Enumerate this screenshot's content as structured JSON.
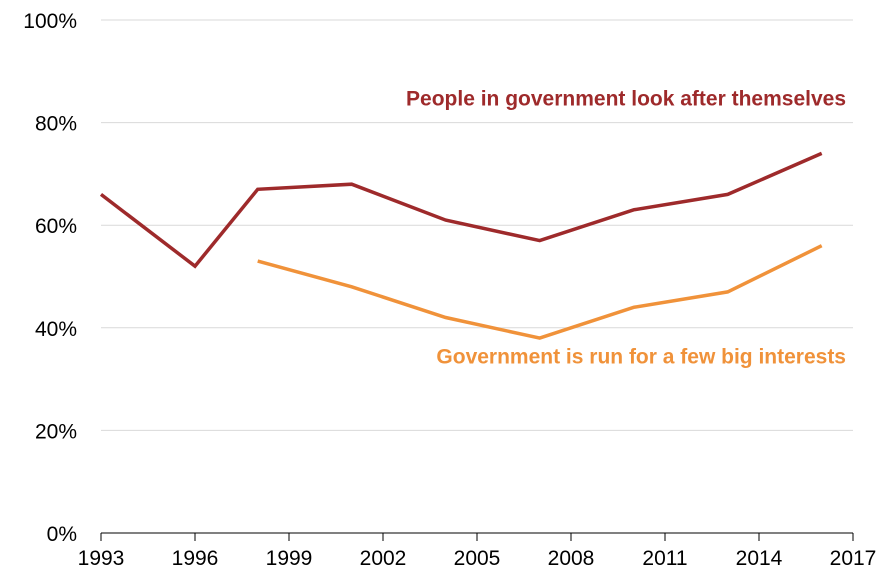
{
  "chart_data": {
    "type": "line",
    "title": "",
    "xlabel": "",
    "ylabel": "",
    "x_ticks": [
      "1993",
      "1996",
      "1999",
      "2002",
      "2005",
      "2008",
      "2011",
      "2014",
      "2017"
    ],
    "y_ticks": [
      "0%",
      "20%",
      "40%",
      "60%",
      "80%",
      "100%"
    ],
    "xlim": [
      1993,
      2017
    ],
    "ylim": [
      0,
      100
    ],
    "grid": true,
    "legend": "none (series labelled directly on chart)",
    "series": [
      {
        "name": "People in government look after themselves",
        "color": "#9e2a2b",
        "label_placement": "above line, right",
        "points": [
          {
            "x": 1993,
            "y": 66
          },
          {
            "x": 1996,
            "y": 52
          },
          {
            "x": 1998,
            "y": 67
          },
          {
            "x": 2001,
            "y": 68
          },
          {
            "x": 2004,
            "y": 61
          },
          {
            "x": 2007,
            "y": 57
          },
          {
            "x": 2010,
            "y": 63
          },
          {
            "x": 2013,
            "y": 66
          },
          {
            "x": 2016,
            "y": 74
          }
        ]
      },
      {
        "name": "Government is run for a few big interests",
        "color": "#f0923a",
        "label_placement": "below line, right",
        "points": [
          {
            "x": 1998,
            "y": 53
          },
          {
            "x": 2001,
            "y": 48
          },
          {
            "x": 2004,
            "y": 42
          },
          {
            "x": 2007,
            "y": 38
          },
          {
            "x": 2010,
            "y": 44
          },
          {
            "x": 2013,
            "y": 47
          },
          {
            "x": 2016,
            "y": 56
          }
        ]
      }
    ]
  }
}
